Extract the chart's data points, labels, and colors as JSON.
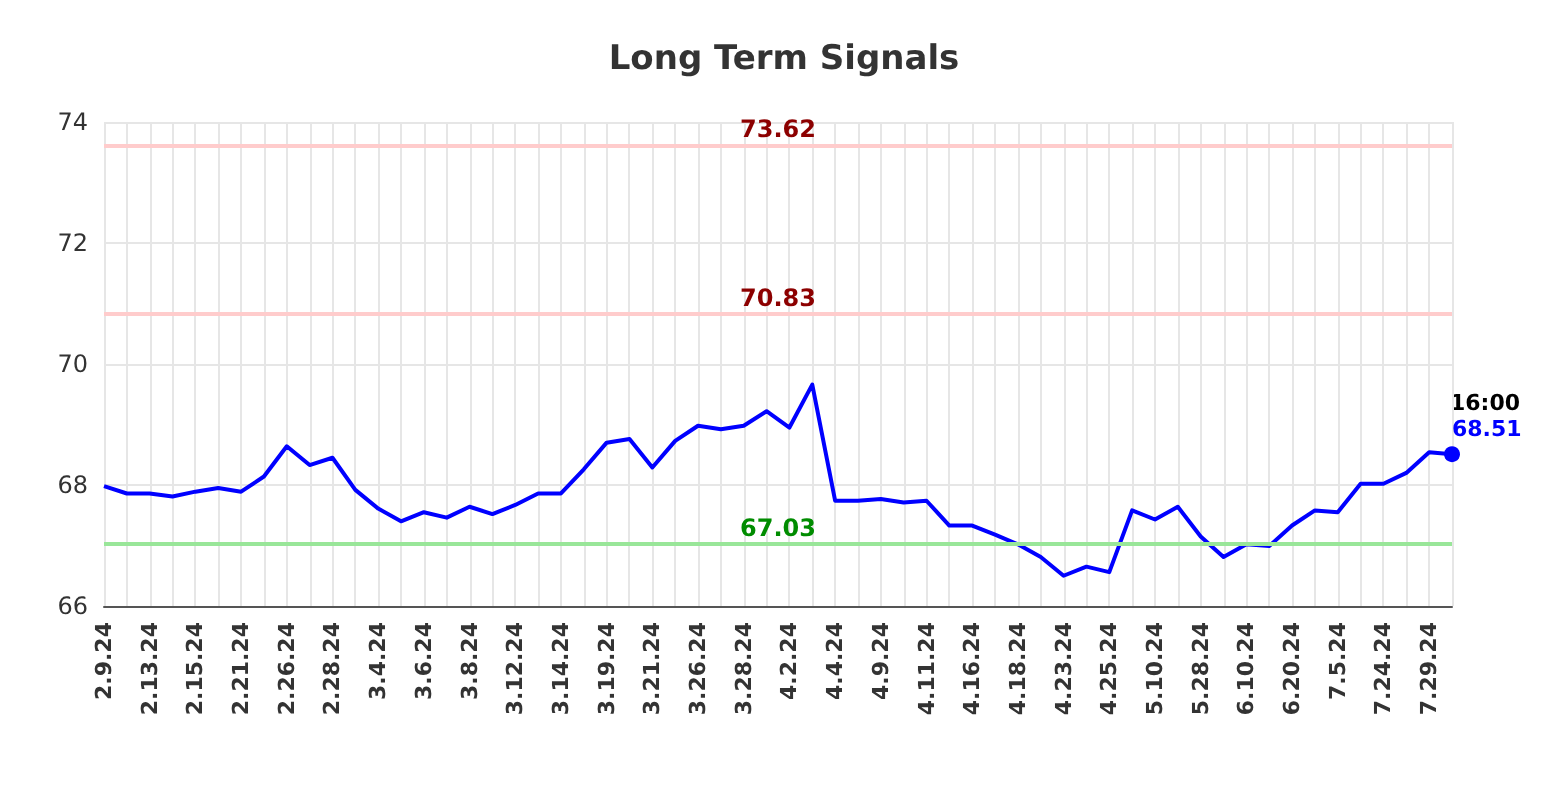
{
  "chart_data": {
    "type": "line",
    "title": "Long Term Signals",
    "categories": [
      "2.9.24",
      null,
      "2.13.24",
      null,
      "2.15.24",
      null,
      "2.21.24",
      null,
      "2.26.24",
      null,
      "2.28.24",
      null,
      "3.4.24",
      null,
      "3.6.24",
      null,
      "3.8.24",
      null,
      "3.12.24",
      null,
      "3.14.24",
      null,
      "3.19.24",
      null,
      "3.21.24",
      null,
      "3.26.24",
      null,
      "3.28.24",
      null,
      "4.2.24",
      null,
      "4.4.24",
      null,
      "4.9.24",
      null,
      "4.11.24",
      null,
      "4.16.24",
      null,
      "4.18.24",
      null,
      "4.23.24",
      null,
      "4.25.24",
      null,
      "5.10.24",
      null,
      "5.28.24",
      null,
      "6.10.24",
      null,
      "6.20.24",
      null,
      "7.5.24",
      null,
      "7.24.24",
      null,
      "7.29.24",
      null
    ],
    "series": [
      {
        "color": "#0000ff",
        "values": [
          67.98,
          67.86,
          67.86,
          67.81,
          67.89,
          67.95,
          67.89,
          68.14,
          68.64,
          68.33,
          68.45,
          67.92,
          67.61,
          67.4,
          67.55,
          67.46,
          67.64,
          67.52,
          67.67,
          67.86,
          67.86,
          68.26,
          68.7,
          68.76,
          68.29,
          68.73,
          68.98,
          68.92,
          68.98,
          69.22,
          68.95,
          69.66,
          67.74,
          67.74,
          67.77,
          67.71,
          67.74,
          67.33,
          67.33,
          67.18,
          67.02,
          66.81,
          66.5,
          66.65,
          66.56,
          67.58,
          67.43,
          67.64,
          67.15,
          66.81,
          67.02,
          66.99,
          67.33,
          67.58,
          67.55,
          68.02,
          68.02,
          68.2,
          68.54,
          68.51
        ],
        "value_labels": [
          null,
          null,
          null,
          null,
          null,
          null,
          null,
          null,
          null,
          null,
          null,
          null,
          null,
          null,
          null,
          null,
          null,
          null,
          null,
          null,
          null,
          null,
          null,
          null,
          null,
          null,
          null,
          null,
          null,
          null,
          null,
          null,
          null,
          null,
          null,
          null,
          null,
          null,
          null,
          null,
          null,
          null,
          null,
          null,
          null,
          null,
          null,
          null,
          null,
          null,
          null,
          null,
          null,
          null,
          null,
          null,
          null,
          null,
          null,
          "68.51"
        ]
      }
    ],
    "annotations": [
      "16:00"
    ],
    "ref_lines": [
      {
        "axis": "y",
        "value": 73.62,
        "label": "73.62",
        "color": "#ffcccc"
      },
      {
        "axis": "y",
        "value": 70.83,
        "label": "70.83",
        "color": "#ffcccc"
      },
      {
        "axis": "y",
        "value": 67.03,
        "label": "67.03",
        "color": "#99e699"
      }
    ],
    "ylim": [
      66,
      74
    ],
    "yticks": [
      66,
      68,
      70,
      72,
      74
    ],
    "grid": true
  }
}
